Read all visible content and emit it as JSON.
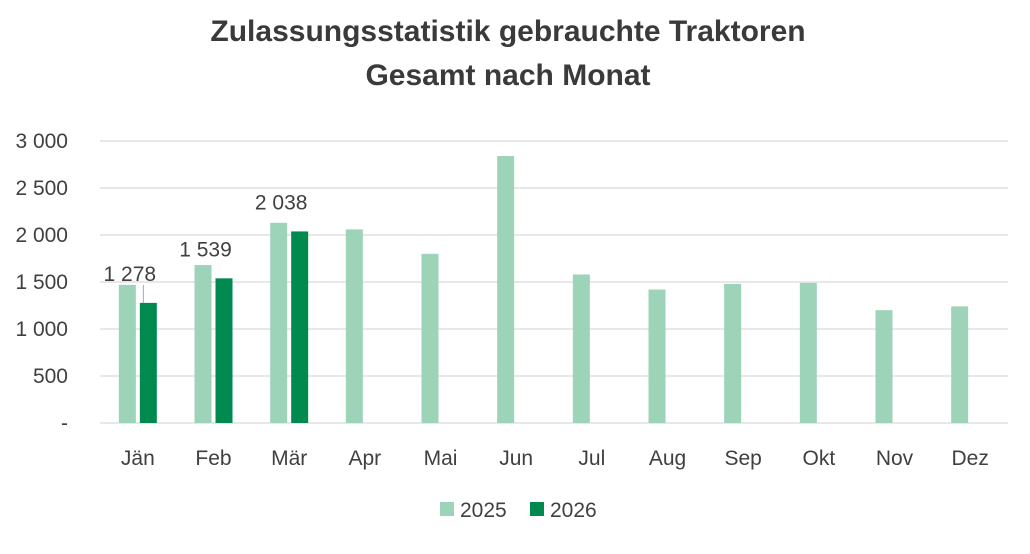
{
  "chart_data": {
    "type": "bar",
    "title_line1": "Zulassungsstatistik gebrauchte Traktoren",
    "title_line2": "Gesamt nach Monat",
    "xlabel": "",
    "ylabel": "",
    "ylim": [
      0,
      3000
    ],
    "yticks": [
      0,
      500,
      1000,
      1500,
      2000,
      2500,
      3000
    ],
    "ytick_labels": [
      "-",
      "500",
      "1 000",
      "1 500",
      "2 000",
      "2 500",
      "3 000"
    ],
    "categories": [
      "Jän",
      "Feb",
      "Mär",
      "Apr",
      "Mai",
      "Jun",
      "Jul",
      "Aug",
      "Sep",
      "Okt",
      "Nov",
      "Dez"
    ],
    "series": [
      {
        "name": "2025",
        "color": "#9dd3b9",
        "values": [
          1470,
          1680,
          2130,
          2060,
          1800,
          2840,
          1580,
          1420,
          1480,
          1490,
          1200,
          1240
        ],
        "data_labels": []
      },
      {
        "name": "2026",
        "color": "#008a4f",
        "values": [
          1278,
          1539,
          2038,
          null,
          null,
          null,
          null,
          null,
          null,
          null,
          null,
          null
        ],
        "data_labels": [
          "1 278",
          "1 539",
          "2 038"
        ]
      }
    ],
    "grid": true,
    "legend_position": "bottom"
  }
}
